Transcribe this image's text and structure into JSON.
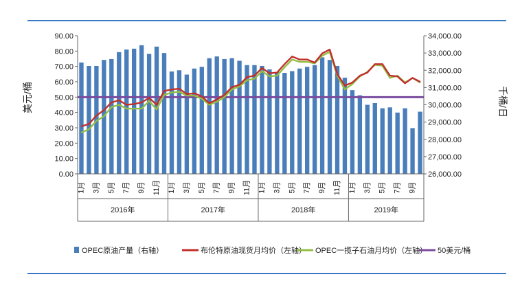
{
  "chart_data": {
    "type": "bar+line",
    "colors": {
      "bar": "#4a7ebb",
      "brent": "#c0302c",
      "opec_basket": "#94be44",
      "threshold": "#7a4c9f",
      "frame": "#3a78c4"
    },
    "y_left": {
      "label": "美元/桶",
      "ylim": [
        0,
        90
      ],
      "ticks": [
        "0.00",
        "10.00",
        "20.00",
        "30.00",
        "40.00",
        "50.00",
        "60.00",
        "70.00",
        "80.00",
        "90.00"
      ]
    },
    "y_right": {
      "label": "千桶/日",
      "ylim": [
        26000,
        34000
      ],
      "ticks": [
        "26,000.00",
        "27,000.00",
        "28,000.00",
        "29,000.00",
        "30,000.00",
        "31,000.00",
        "32,000.00",
        "33,000.00",
        "34,000.00"
      ]
    },
    "x": {
      "month_labels": [
        "1月",
        "",
        "3月",
        "",
        "5月",
        "",
        "7月",
        "",
        "9月",
        "",
        "11月",
        "",
        "1月",
        "",
        "3月",
        "",
        "5月",
        "",
        "7月",
        "",
        "9月",
        "",
        "11月",
        "",
        "1月",
        "",
        "3月",
        "",
        "5月",
        "",
        "7月",
        "",
        "9月",
        "",
        "11月",
        "",
        "1月",
        "",
        "3月",
        "",
        "5月",
        "",
        "7月",
        "",
        "9月",
        ""
      ],
      "years": [
        "2016年",
        "2017年",
        "2018年",
        "2019年"
      ]
    },
    "series": [
      {
        "name": "OPEC原油产量（右轴）",
        "axis": "right",
        "kind": "bar",
        "values": [
          32450,
          32250,
          32250,
          32600,
          32650,
          33050,
          33200,
          33250,
          33450,
          32950,
          33370,
          33000,
          31930,
          32000,
          31750,
          32100,
          32200,
          32700,
          32800,
          32650,
          32700,
          32550,
          32300,
          32300,
          32250,
          32050,
          31900,
          31850,
          31950,
          32100,
          32200,
          32300,
          32750,
          32600,
          32250,
          31570,
          30850,
          30550,
          30000,
          30100,
          29800,
          29850,
          29550,
          29800,
          28650,
          29600
        ]
      },
      {
        "name": "布伦特原油现货月均价（左轴）",
        "axis": "left",
        "kind": "line",
        "values": [
          31.0,
          32.5,
          38.0,
          41.5,
          46.5,
          48.0,
          45.0,
          45.5,
          46.5,
          49.5,
          45.0,
          54.0,
          55.0,
          55.5,
          52.0,
          52.5,
          50.5,
          46.0,
          48.5,
          51.5,
          56.5,
          58.0,
          63.0,
          64.0,
          69.0,
          65.5,
          66.0,
          71.5,
          76.5,
          74.5,
          74.5,
          72.5,
          78.5,
          81.0,
          65.0,
          57.5,
          59.5,
          64.0,
          66.0,
          71.5,
          71.5,
          64.0,
          63.5,
          59.0,
          62.5,
          60.0
        ]
      },
      {
        "name": "OPEC一揽子石油月均价（左轴）",
        "axis": "left",
        "kind": "line",
        "values": [
          27.0,
          29.0,
          34.5,
          37.5,
          43.5,
          45.0,
          42.5,
          42.5,
          42.5,
          47.5,
          42.0,
          51.5,
          53.0,
          53.5,
          51.0,
          51.0,
          49.0,
          45.0,
          47.0,
          50.0,
          55.0,
          57.0,
          61.0,
          62.0,
          67.0,
          63.5,
          64.0,
          69.5,
          74.5,
          73.0,
          73.0,
          72.0,
          77.0,
          79.5,
          64.0,
          55.0,
          58.5,
          63.5,
          66.5,
          71.0,
          70.5,
          62.5,
          64.0,
          59.5,
          62.5,
          59.5
        ]
      },
      {
        "name": "50美元/桶",
        "axis": "left",
        "kind": "hline",
        "value": 50
      }
    ]
  }
}
